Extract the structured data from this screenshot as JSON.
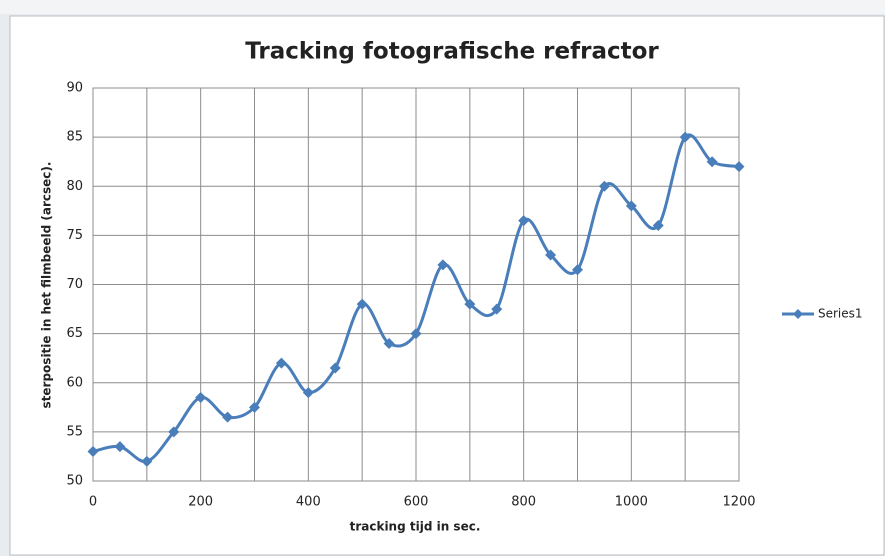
{
  "chart_data": {
    "type": "line",
    "title": "Tracking fotografische refractor",
    "x_label": "tracking tijd in sec.",
    "y_label": "sterpositie in het filmbeeld (arcsec).",
    "x": [
      0,
      50,
      100,
      150,
      200,
      250,
      300,
      350,
      400,
      450,
      500,
      550,
      600,
      650,
      700,
      750,
      800,
      850,
      900,
      950,
      1000,
      1050,
      1100,
      1150,
      1200
    ],
    "series": [
      {
        "name": "Series1",
        "color": "#4a7ebb",
        "values": [
          53,
          53.5,
          52,
          55,
          58.5,
          56.5,
          57.5,
          62,
          59,
          61.5,
          68,
          64,
          65,
          72,
          68,
          67.5,
          76.5,
          73,
          71.5,
          80,
          78,
          76,
          85,
          82.5,
          82
        ]
      }
    ],
    "xlim": [
      0,
      1200
    ],
    "xticks": [
      0,
      200,
      400,
      600,
      800,
      1000,
      1200
    ],
    "x_minor_ticks": [
      100,
      300,
      500,
      700,
      900,
      1100
    ],
    "ylim": [
      50,
      90
    ],
    "yticks": [
      50,
      55,
      60,
      65,
      70,
      75,
      80,
      85,
      90
    ],
    "grid": true,
    "smooth": true,
    "marker": "diamond",
    "legend": "right"
  }
}
